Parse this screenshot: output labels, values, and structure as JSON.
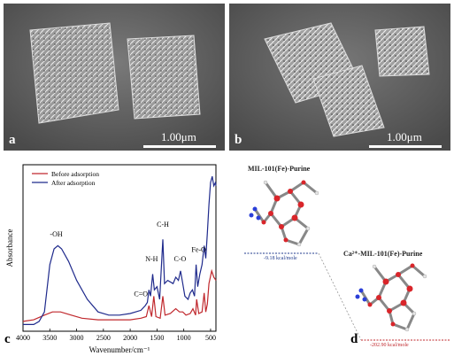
{
  "panels": {
    "a": {
      "label": "a",
      "scale_text": "1.00μm"
    },
    "b": {
      "label": "b",
      "scale_text": "1.00μm"
    },
    "c": {
      "label": "c"
    },
    "d": {
      "label": "d"
    }
  },
  "chart_data": {
    "type": "line",
    "xlabel": "Wavenumber/cm⁻¹",
    "ylabel": "Absorbance",
    "xlim": [
      4000,
      400
    ],
    "xticks": [
      "4000",
      "3500",
      "3000",
      "2500",
      "2000",
      "1500",
      "1000",
      "500"
    ],
    "legend": {
      "placement": "top-left",
      "entries": [
        "Before adsorption",
        "After adsorption"
      ]
    },
    "series": [
      {
        "name": "Before adsorption",
        "color": "#c0282d",
        "points": [
          [
            4000,
            0.04
          ],
          [
            3800,
            0.05
          ],
          [
            3600,
            0.08
          ],
          [
            3450,
            0.1
          ],
          [
            3300,
            0.1
          ],
          [
            3100,
            0.08
          ],
          [
            2900,
            0.06
          ],
          [
            2600,
            0.05
          ],
          [
            2300,
            0.05
          ],
          [
            2000,
            0.05
          ],
          [
            1800,
            0.06
          ],
          [
            1700,
            0.07
          ],
          [
            1650,
            0.14
          ],
          [
            1600,
            0.07
          ],
          [
            1560,
            0.2
          ],
          [
            1520,
            0.07
          ],
          [
            1440,
            0.06
          ],
          [
            1390,
            0.2
          ],
          [
            1350,
            0.08
          ],
          [
            1250,
            0.09
          ],
          [
            1150,
            0.12
          ],
          [
            1080,
            0.1
          ],
          [
            1020,
            0.1
          ],
          [
            960,
            0.08
          ],
          [
            880,
            0.09
          ],
          [
            830,
            0.12
          ],
          [
            780,
            0.08
          ],
          [
            760,
            0.18
          ],
          [
            720,
            0.09
          ],
          [
            660,
            0.1
          ],
          [
            620,
            0.22
          ],
          [
            590,
            0.1
          ],
          [
            560,
            0.15
          ],
          [
            530,
            0.28
          ],
          [
            480,
            0.36
          ],
          [
            440,
            0.32
          ],
          [
            400,
            0.3
          ]
        ]
      },
      {
        "name": "After adsorption",
        "color": "#1f2a8c",
        "points": [
          [
            4000,
            0.02
          ],
          [
            3800,
            0.02
          ],
          [
            3700,
            0.04
          ],
          [
            3600,
            0.1
          ],
          [
            3500,
            0.4
          ],
          [
            3420,
            0.5
          ],
          [
            3350,
            0.52
          ],
          [
            3280,
            0.5
          ],
          [
            3150,
            0.42
          ],
          [
            3000,
            0.3
          ],
          [
            2800,
            0.18
          ],
          [
            2600,
            0.1
          ],
          [
            2400,
            0.08
          ],
          [
            2200,
            0.08
          ],
          [
            2000,
            0.09
          ],
          [
            1800,
            0.11
          ],
          [
            1720,
            0.14
          ],
          [
            1680,
            0.16
          ],
          [
            1650,
            0.24
          ],
          [
            1620,
            0.2
          ],
          [
            1580,
            0.34
          ],
          [
            1550,
            0.24
          ],
          [
            1500,
            0.26
          ],
          [
            1450,
            0.18
          ],
          [
            1390,
            0.56
          ],
          [
            1360,
            0.28
          ],
          [
            1300,
            0.3
          ],
          [
            1200,
            0.28
          ],
          [
            1150,
            0.32
          ],
          [
            1100,
            0.3
          ],
          [
            1060,
            0.36
          ],
          [
            1020,
            0.28
          ],
          [
            980,
            0.2
          ],
          [
            920,
            0.18
          ],
          [
            880,
            0.22
          ],
          [
            840,
            0.24
          ],
          [
            800,
            0.2
          ],
          [
            770,
            0.4
          ],
          [
            740,
            0.26
          ],
          [
            700,
            0.34
          ],
          [
            660,
            0.4
          ],
          [
            620,
            0.52
          ],
          [
            590,
            0.44
          ],
          [
            560,
            0.6
          ],
          [
            530,
            0.78
          ],
          [
            500,
            0.92
          ],
          [
            470,
            0.96
          ],
          [
            440,
            0.9
          ],
          [
            410,
            0.92
          ],
          [
            400,
            0.9
          ]
        ]
      }
    ],
    "annotations": [
      "-OH",
      "C=O",
      "N-H",
      "C-H",
      "C-O",
      "Fe-O"
    ]
  },
  "molecules": {
    "top_title": "MIL-101(Fe)-Purine",
    "top_energy": "-9.18 kcal/mole",
    "bottom_title": "Ca²⁺-MIL-101(Fe)-Purine",
    "bottom_energy": "-202.90 kcal/mole",
    "top_energy_color": "#1f3a8c",
    "bottom_energy_color": "#c0282d"
  }
}
